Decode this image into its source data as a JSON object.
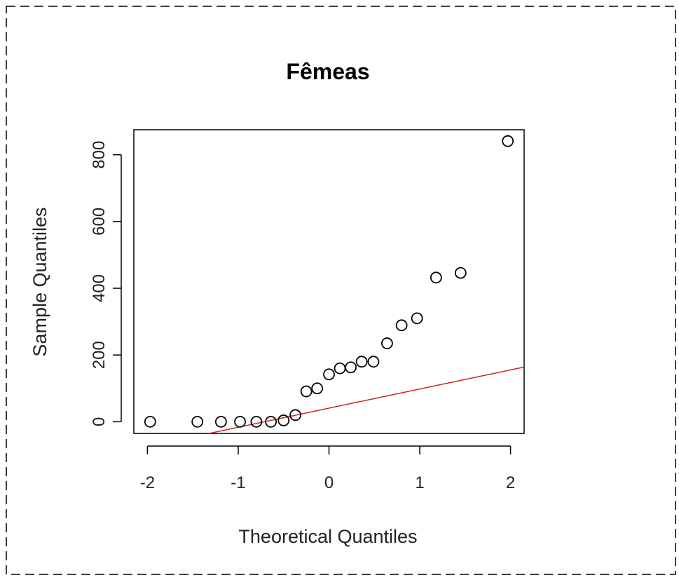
{
  "chart_data": {
    "type": "scatter",
    "title": "Fêmeas",
    "xlabel": "Theoretical Quantiles",
    "ylabel": "Sample Quantiles",
    "xlim": [
      -2.15,
      2.15
    ],
    "ylim": [
      -35,
      875
    ],
    "xticks": [
      -2,
      -1,
      0,
      1,
      2
    ],
    "xtick_labels": [
      "-2",
      "-1",
      "0",
      "1",
      "2"
    ],
    "yticks": [
      0,
      200,
      400,
      600,
      800
    ],
    "ytick_labels": [
      "0",
      "200",
      "400",
      "600",
      "800"
    ],
    "grid": false,
    "points": [
      {
        "x": -1.97,
        "y": 0
      },
      {
        "x": -1.45,
        "y": 0
      },
      {
        "x": -1.19,
        "y": 0
      },
      {
        "x": -0.98,
        "y": 0
      },
      {
        "x": -0.8,
        "y": 0
      },
      {
        "x": -0.64,
        "y": 0
      },
      {
        "x": -0.5,
        "y": 4
      },
      {
        "x": -0.37,
        "y": 20
      },
      {
        "x": -0.25,
        "y": 91
      },
      {
        "x": -0.13,
        "y": 100
      },
      {
        "x": 0.0,
        "y": 142
      },
      {
        "x": 0.12,
        "y": 160
      },
      {
        "x": 0.24,
        "y": 163
      },
      {
        "x": 0.36,
        "y": 180
      },
      {
        "x": 0.49,
        "y": 180
      },
      {
        "x": 0.64,
        "y": 235
      },
      {
        "x": 0.8,
        "y": 289
      },
      {
        "x": 0.97,
        "y": 310
      },
      {
        "x": 1.18,
        "y": 432
      },
      {
        "x": 1.45,
        "y": 446
      },
      {
        "x": 1.97,
        "y": 841
      }
    ],
    "reference_line": {
      "color": "#cc2222",
      "x0": -1.32,
      "y0": -35,
      "x1": 2.15,
      "y1": 164
    },
    "marker": {
      "shape": "open-circle",
      "color": "#000000"
    }
  }
}
